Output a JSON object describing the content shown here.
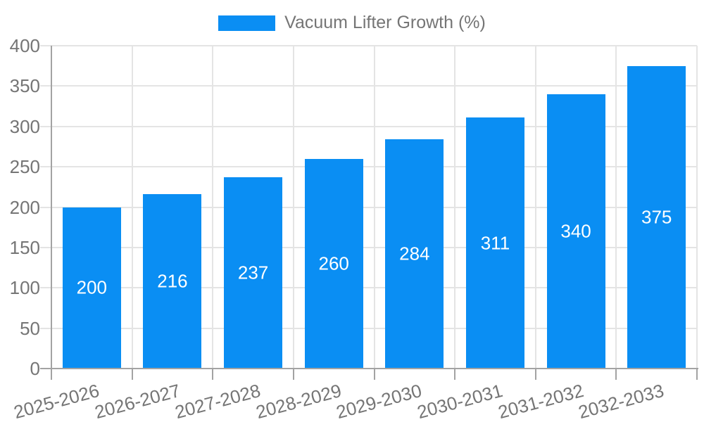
{
  "chart_data": {
    "type": "bar",
    "title": "Vacuum Lifter Growth (%)",
    "legend": {
      "label": "Vacuum Lifter Growth (%)",
      "position": "top"
    },
    "categories": [
      "2025-2026",
      "2026-2027",
      "2027-2028",
      "2028-2029",
      "2029-2030",
      "2030-2031",
      "2031-2032",
      "2032-2033"
    ],
    "series": [
      {
        "name": "Vacuum Lifter Growth (%)",
        "values": [
          200,
          216,
          237,
          260,
          284,
          311,
          340,
          375
        ]
      }
    ],
    "xlabel": "",
    "ylabel": "",
    "ylim": [
      0,
      400
    ],
    "ytick_step": 50,
    "grid": true,
    "legend_position": "top-center",
    "x_label_rotation_deg": -15,
    "colors": {
      "bar": "#0a8ef3",
      "value_label": "#ffffff",
      "axis": "#a3a3a3",
      "gridline": "#e4e4e4",
      "tick_label": "#757575",
      "background": "#ffffff"
    }
  }
}
